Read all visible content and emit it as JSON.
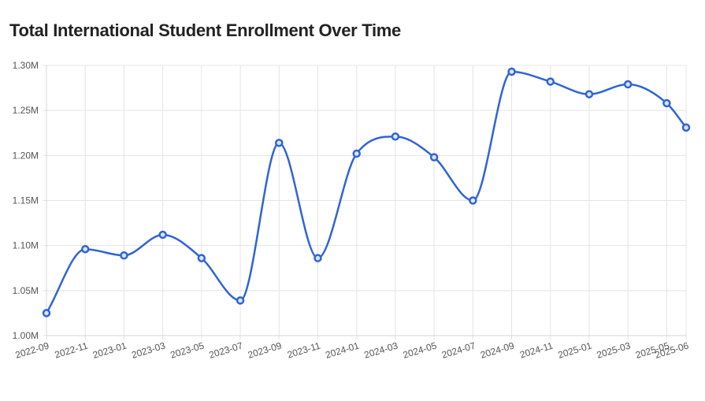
{
  "chart_data": {
    "type": "line",
    "title": "Total International Student Enrollment Over Time",
    "xlabel": "",
    "ylabel": "",
    "grid": true,
    "legend": "none",
    "ylim": [
      1000000,
      1300000
    ],
    "y_ticks": [
      "1.00M",
      "1.05M",
      "1.10M",
      "1.15M",
      "1.20M",
      "1.25M",
      "1.30M"
    ],
    "x_tick_labels": [
      "2022-09",
      "2022-11",
      "2023-01",
      "2023-03",
      "2023-05",
      "2023-07",
      "2023-09",
      "2023-11",
      "2024-01",
      "2024-03",
      "2024-05",
      "2024-07",
      "2024-09",
      "2024-11",
      "2025-01",
      "2025-03",
      "2025-05",
      "2025-06"
    ],
    "x": [
      "2022-09",
      "2022-11",
      "2023-01",
      "2023-03",
      "2023-05",
      "2023-07",
      "2023-09",
      "2023-11",
      "2024-01",
      "2024-03",
      "2024-05",
      "2024-07",
      "2024-09",
      "2024-11",
      "2025-01",
      "2025-03",
      "2025-05",
      "2025-06"
    ],
    "values": [
      1025000,
      1096000,
      1089000,
      1112000,
      1086000,
      1039000,
      1214000,
      1086000,
      1202000,
      1221000,
      1198000,
      1150000,
      1293000,
      1282000,
      1268000,
      1279000,
      1258000,
      1231000
    ],
    "color": "#2f64d6"
  }
}
